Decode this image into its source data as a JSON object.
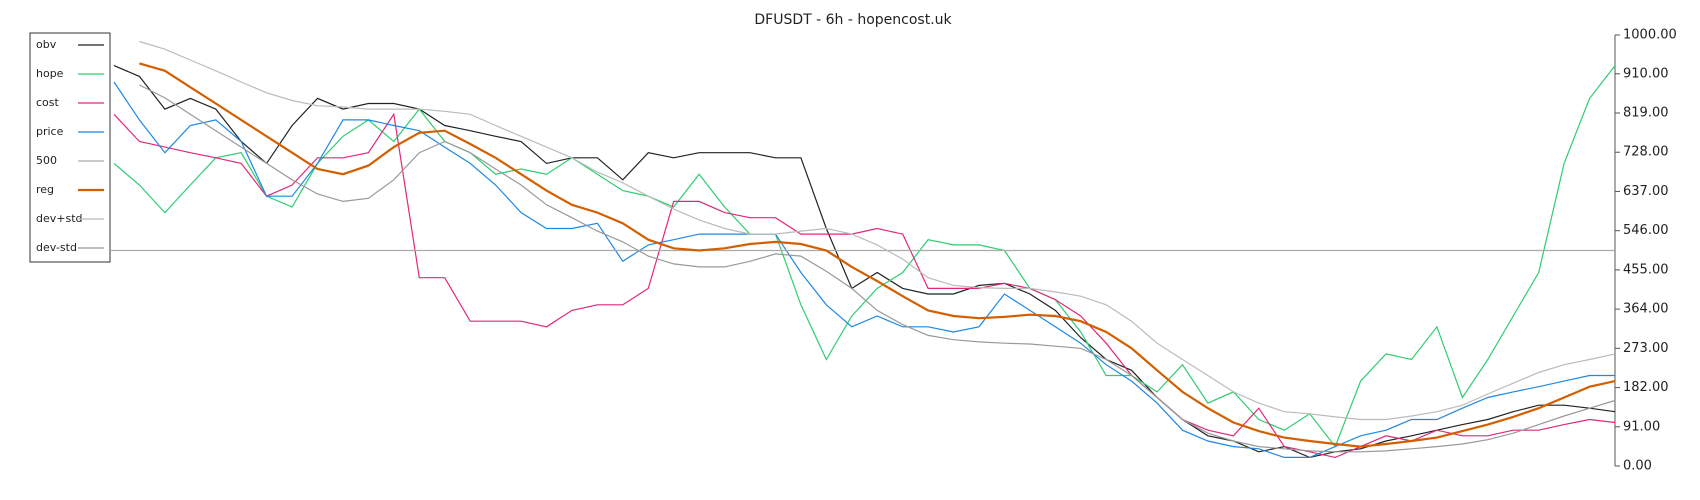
{
  "chart_data": {
    "type": "line",
    "title": "DFUSDT - 6h - hopencost.uk",
    "ylim": [
      0,
      1000
    ],
    "yticks": [
      {
        "value": 0,
        "label": "0.00"
      },
      {
        "value": 91,
        "label": "91.00"
      },
      {
        "value": 182,
        "label": "182.00"
      },
      {
        "value": 273,
        "label": "273.00"
      },
      {
        "value": 364,
        "label": "364.00"
      },
      {
        "value": 455,
        "label": "455.00"
      },
      {
        "value": 546,
        "label": "546.00"
      },
      {
        "value": 637,
        "label": "637.00"
      },
      {
        "value": 728,
        "label": "728.00"
      },
      {
        "value": 819,
        "label": "819.00"
      },
      {
        "value": 910,
        "label": "910.00"
      },
      {
        "value": 1000,
        "label": "1000.00"
      }
    ],
    "legend": "upper left",
    "series": [
      {
        "name": "obv",
        "color": "#222222",
        "values": [
          929,
          904,
          828,
          853,
          828,
          753,
          702,
          790,
          853,
          828,
          841,
          841,
          828,
          790,
          778,
          765,
          753,
          702,
          715,
          715,
          664,
          727,
          715,
          727,
          727,
          727,
          715,
          715,
          551,
          412,
          449,
          412,
          399,
          399,
          419,
          424,
          399,
          361,
          298,
          247,
          222,
          159,
          108,
          70,
          58,
          33,
          45,
          20,
          33,
          40,
          58,
          70,
          83,
          96,
          108,
          126,
          141,
          141,
          134,
          126
        ]
      },
      {
        "name": "hope",
        "color": "#2ecc71",
        "values": [
          702,
          652,
          588,
          652,
          715,
          727,
          626,
          601,
          702,
          765,
          803,
          753,
          828,
          753,
          727,
          677,
          689,
          677,
          715,
          677,
          639,
          626,
          601,
          677,
          601,
          538,
          538,
          374,
          247,
          348,
          412,
          449,
          525,
          513,
          513,
          500,
          412,
          386,
          311,
          210,
          210,
          172,
          235,
          146,
          172,
          108,
          83,
          121,
          45,
          197,
          260,
          247,
          323,
          159,
          247,
          348,
          449,
          702,
          853,
          929
        ]
      },
      {
        "name": "cost",
        "color": "#e0287a",
        "values": [
          816,
          753,
          740,
          727,
          715,
          702,
          626,
          652,
          715,
          715,
          727,
          816,
          437,
          437,
          336,
          336,
          336,
          323,
          361,
          374,
          374,
          412,
          614,
          614,
          588,
          576,
          576,
          538,
          538,
          538,
          551,
          538,
          412,
          412,
          412,
          424,
          412,
          386,
          348,
          285,
          210,
          159,
          108,
          83,
          70,
          134,
          45,
          33,
          20,
          45,
          70,
          58,
          83,
          70,
          70,
          83,
          83,
          96,
          108,
          101
        ]
      },
      {
        "name": "price",
        "color": "#1e88e5",
        "values": [
          891,
          803,
          727,
          790,
          803,
          753,
          626,
          626,
          702,
          803,
          803,
          790,
          778,
          740,
          702,
          652,
          588,
          551,
          551,
          563,
          475,
          513,
          525,
          538,
          538,
          538,
          538,
          449,
          374,
          323,
          348,
          323,
          323,
          311,
          323,
          399,
          361,
          323,
          285,
          235,
          197,
          146,
          83,
          58,
          45,
          40,
          20,
          20,
          45,
          70,
          83,
          108,
          108,
          134,
          159,
          172,
          184,
          197,
          210,
          210
        ]
      },
      {
        "name": "500",
        "color": "#aaaaaa",
        "value": 500
      },
      {
        "name": "reg",
        "color": "#d35f00",
        "values": [
          null,
          934,
          917,
          879,
          841,
          803,
          765,
          727,
          689,
          677,
          697,
          740,
          773,
          778,
          747,
          715,
          677,
          639,
          606,
          588,
          563,
          525,
          505,
          500,
          505,
          515,
          520,
          515,
          500,
          462,
          429,
          394,
          361,
          348,
          343,
          346,
          351,
          348,
          336,
          311,
          273,
          222,
          172,
          134,
          101,
          81,
          66,
          58,
          51,
          45,
          51,
          58,
          66,
          81,
          96,
          114,
          134,
          159,
          184,
          197
        ]
      },
      {
        "name": "dev+std",
        "color": "#bbbbbb",
        "values": [
          null,
          985,
          967,
          942,
          917,
          891,
          866,
          848,
          836,
          833,
          828,
          828,
          828,
          823,
          816,
          790,
          765,
          740,
          715,
          682,
          657,
          626,
          596,
          571,
          551,
          538,
          538,
          545,
          551,
          538,
          513,
          480,
          437,
          419,
          414,
          412,
          412,
          404,
          394,
          374,
          336,
          285,
          247,
          210,
          172,
          146,
          126,
          121,
          114,
          108,
          108,
          116,
          126,
          141,
          167,
          192,
          217,
          235,
          247,
          260
        ]
      },
      {
        "name": "dev-std",
        "color": "#999999",
        "values": [
          null,
          884,
          854,
          816,
          778,
          740,
          702,
          664,
          631,
          614,
          621,
          664,
          727,
          753,
          727,
          689,
          652,
          606,
          576,
          545,
          520,
          487,
          469,
          462,
          462,
          475,
          492,
          487,
          452,
          412,
          361,
          328,
          303,
          293,
          288,
          285,
          283,
          278,
          273,
          247,
          210,
          159,
          108,
          76,
          58,
          45,
          40,
          35,
          33,
          33,
          35,
          40,
          45,
          51,
          61,
          76,
          96,
          116,
          134,
          152
        ]
      }
    ]
  }
}
